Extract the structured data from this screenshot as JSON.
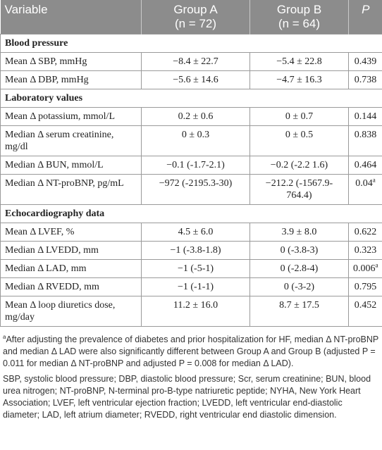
{
  "header": {
    "variable": "Variable",
    "group_a": "Group A",
    "group_a_n": "(n = 72)",
    "group_b": "Group B",
    "group_b_n": "(n = 64)",
    "p": "P"
  },
  "sections": [
    {
      "title": "Blood pressure",
      "rows": [
        {
          "label": "Mean Δ SBP, mmHg",
          "a": "−8.4 ± 22.7",
          "b": "−5.4 ± 22.8",
          "p": "0.439",
          "sup": ""
        },
        {
          "label": "Mean Δ DBP, mmHg",
          "a": "−5.6 ± 14.6",
          "b": "−4.7 ± 16.3",
          "p": "0.738",
          "sup": ""
        }
      ]
    },
    {
      "title": "Laboratory values",
      "rows": [
        {
          "label": "Mean Δ potassium, mmol/L",
          "a": "0.2 ± 0.6",
          "b": "0 ± 0.7",
          "p": "0.144",
          "sup": ""
        },
        {
          "label": "Median Δ serum creatinine, mg/dl",
          "a": "0 ± 0.3",
          "b": "0 ± 0.5",
          "p": "0.838",
          "sup": ""
        },
        {
          "label": "Median Δ BUN, mmol/L",
          "a": "−0.1 (-1.7-2.1)",
          "b": "−0.2 (-2.2 1.6)",
          "p": "0.464",
          "sup": ""
        },
        {
          "label": "Median Δ NT-proBNP, pg/mL",
          "a": "−972 (-2195.3-30)",
          "b": "−212.2 (-1567.9-764.4)",
          "p": "0.04",
          "sup": "a"
        }
      ]
    },
    {
      "title": "Echocardiography data",
      "rows": [
        {
          "label": "Mean Δ LVEF, %",
          "a": "4.5 ± 6.0",
          "b": "3.9 ± 8.0",
          "p": "0.622",
          "sup": ""
        },
        {
          "label": "Median Δ LVEDD, mm",
          "a": "−1 (-3.8-1.8)",
          "b": "0 (-3.8-3)",
          "p": "0.323",
          "sup": ""
        },
        {
          "label": "Median Δ LAD, mm",
          "a": "−1 (-5-1)",
          "b": "0 (-2.8-4)",
          "p": "0.006",
          "sup": "a"
        },
        {
          "label": "Median Δ RVEDD, mm",
          "a": "−1 (-1-1)",
          "b": "0 (-3-2)",
          "p": "0.795",
          "sup": ""
        },
        {
          "label": "Mean Δ loop diuretics dose, mg/day",
          "a": "11.2 ± 16.0",
          "b": "8.7 ± 17.5",
          "p": "0.452",
          "sup": ""
        }
      ]
    }
  ],
  "footnotes": {
    "a_marker": "a",
    "a_text": "After adjusting the prevalence of diabetes and prior hospitalization for HF, median Δ NT-proBNP and median Δ LAD were also significantly different between Group A and Group B (adjusted P = 0.011 for median Δ NT-proBNP and adjusted P = 0.008 for median Δ LAD).",
    "abbreviations": "SBP, systolic blood pressure; DBP, diastolic blood pressure; Scr, serum creatinine; BUN, blood urea nitrogen; NT-proBNP, N-terminal pro-B-type natriuretic peptide; NYHA, New York Heart Association; LVEF, left ventricular ejection fraction; LVEDD, left ventricular end-diastolic diameter; LAD, left atrium diameter; RVEDD, right ventricular end diastolic dimension."
  }
}
